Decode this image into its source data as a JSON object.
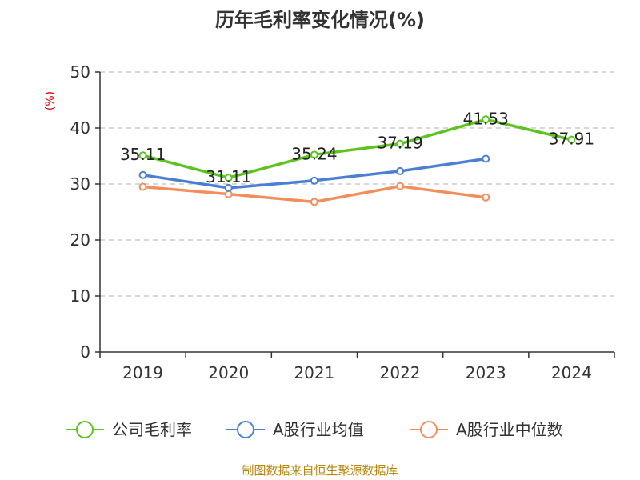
{
  "chart_data": {
    "type": "line",
    "title": "历年毛利率变化情况(%)",
    "ylabel": "(%)",
    "xlabel": "",
    "categories": [
      "2019",
      "2020",
      "2021",
      "2022",
      "2023",
      "2024"
    ],
    "ylim": [
      0,
      50
    ],
    "yticks": [
      0,
      10,
      20,
      30,
      40,
      50
    ],
    "grid": true,
    "legend_position": "bottom",
    "series": [
      {
        "name": "公司毛利率",
        "color": "#5cc320",
        "values": [
          35.11,
          31.11,
          35.24,
          37.19,
          41.53,
          37.91
        ],
        "labels": [
          "35.11",
          "31.11",
          "35.24",
          "37.19",
          "41.53",
          "37.91"
        ]
      },
      {
        "name": "A股行业均值",
        "color": "#4a7fd4",
        "values": [
          31.6,
          29.3,
          30.6,
          32.3,
          34.5,
          null
        ]
      },
      {
        "name": "A股行业中位数",
        "color": "#f28e5c",
        "values": [
          29.5,
          28.2,
          26.8,
          29.6,
          27.6,
          null
        ]
      }
    ]
  },
  "source_text": "制图数据来自恒生聚源数据库"
}
